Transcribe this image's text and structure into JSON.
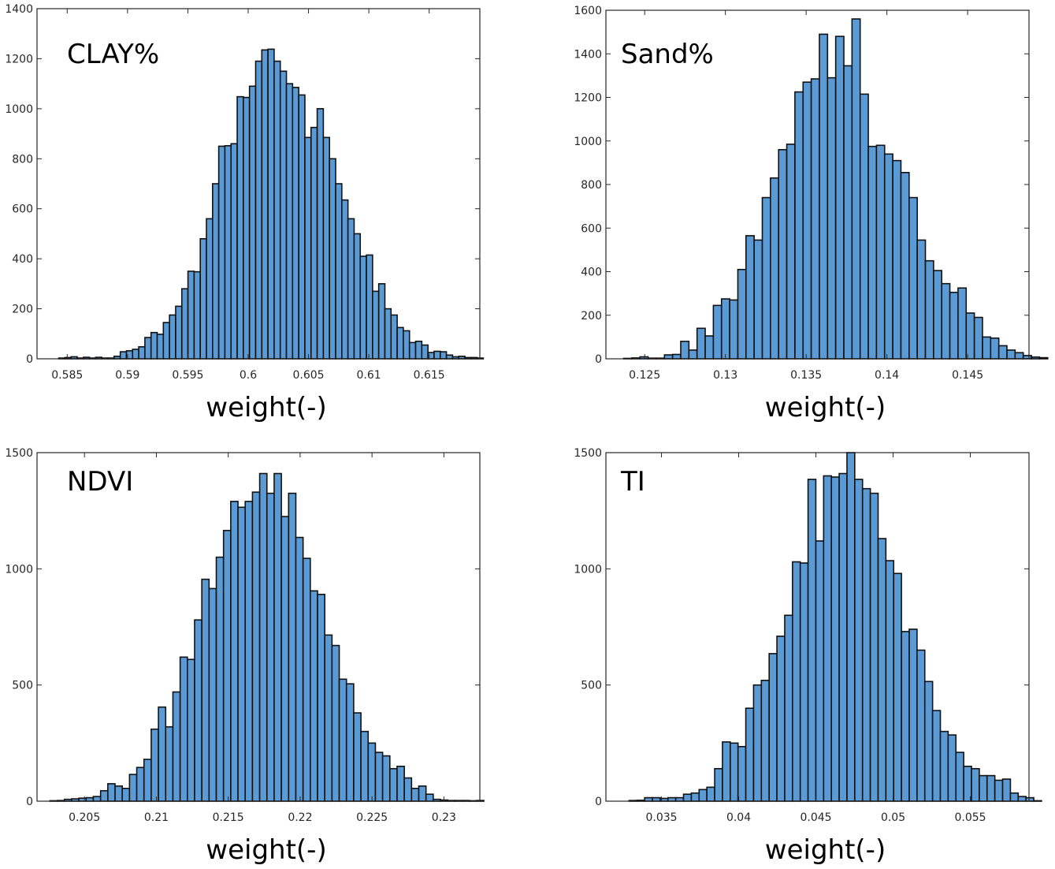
{
  "chart_data": [
    {
      "type": "bar",
      "title": "CLAY%",
      "xlabel": "weight(-)",
      "ylabel": "",
      "xlim": [
        0.5825,
        0.6192
      ],
      "ylim": [
        0,
        1400
      ],
      "xticks": [
        0.585,
        0.59,
        0.595,
        0.6,
        0.605,
        0.61,
        0.615
      ],
      "xtick_labels": [
        "0.585",
        "0.59",
        "0.595",
        "0.6",
        "0.605",
        "0.61",
        "0.615"
      ],
      "yticks": [
        0,
        200,
        400,
        600,
        800,
        1000,
        1200,
        1400
      ],
      "ytick_labels": [
        "0",
        "200",
        "400",
        "600",
        "800",
        "1000",
        "1200",
        "1400"
      ],
      "bin_start": 0.5843,
      "bin_width": 0.00051,
      "values": [
        3,
        5,
        8,
        3,
        6,
        3,
        6,
        3,
        3,
        10,
        28,
        32,
        38,
        48,
        85,
        105,
        98,
        145,
        175,
        210,
        280,
        350,
        348,
        480,
        560,
        700,
        850,
        852,
        860,
        1048,
        1045,
        1090,
        1190,
        1235,
        1238,
        1190,
        1150,
        1100,
        1085,
        1055,
        885,
        925,
        1000,
        885,
        800,
        700,
        635,
        560,
        500,
        410,
        415,
        270,
        300,
        200,
        175,
        125,
        112,
        65,
        70,
        55,
        25,
        30,
        28,
        15,
        8,
        10,
        5,
        5,
        3
      ]
    },
    {
      "type": "bar",
      "title": "Sand%",
      "xlabel": "weight(-)",
      "ylabel": "",
      "xlim": [
        0.1226,
        0.1488
      ],
      "ylim": [
        0,
        1600
      ],
      "xticks": [
        0.125,
        0.13,
        0.135,
        0.14,
        0.145
      ],
      "xtick_labels": [
        "0.125",
        "0.13",
        "0.135",
        "0.14",
        "0.145"
      ],
      "yticks": [
        0,
        200,
        400,
        600,
        800,
        1000,
        1200,
        1400,
        1600
      ],
      "ytick_labels": [
        "0",
        "200",
        "400",
        "600",
        "800",
        "1000",
        "1200",
        "1400",
        "1600"
      ],
      "bin_start": 0.1237,
      "bin_width": 0.000505,
      "values": [
        2,
        4,
        9,
        3,
        3,
        18,
        20,
        80,
        40,
        140,
        105,
        245,
        275,
        270,
        410,
        565,
        545,
        740,
        830,
        960,
        985,
        1225,
        1270,
        1285,
        1490,
        1290,
        1480,
        1345,
        1560,
        1215,
        975,
        980,
        940,
        910,
        855,
        740,
        545,
        450,
        405,
        345,
        305,
        325,
        210,
        190,
        100,
        95,
        60,
        40,
        28,
        15,
        8,
        5
      ]
    },
    {
      "type": "bar",
      "title": "NDVI",
      "xlabel": "weight(-)",
      "ylabel": "",
      "xlim": [
        0.2017,
        0.2325
      ],
      "ylim": [
        0,
        1500
      ],
      "xticks": [
        0.205,
        0.21,
        0.215,
        0.22,
        0.225,
        0.23
      ],
      "xtick_labels": [
        "0.205",
        "0.21",
        "0.215",
        "0.22",
        "0.225",
        "0.23"
      ],
      "yticks": [
        0,
        500,
        1000,
        1500
      ],
      "ytick_labels": [
        "0",
        "500",
        "1000",
        "1500"
      ],
      "bin_start": 0.2026,
      "bin_width": 0.000503,
      "values": [
        2,
        3,
        8,
        10,
        13,
        15,
        20,
        45,
        75,
        65,
        55,
        115,
        145,
        180,
        310,
        405,
        320,
        470,
        620,
        610,
        780,
        955,
        915,
        1050,
        1165,
        1290,
        1265,
        1290,
        1330,
        1410,
        1325,
        1410,
        1225,
        1325,
        1135,
        1045,
        905,
        890,
        715,
        670,
        525,
        505,
        380,
        300,
        250,
        210,
        195,
        140,
        150,
        100,
        55,
        65,
        30,
        8,
        5,
        3,
        3,
        3,
        2,
        3
      ]
    },
    {
      "type": "bar",
      "title": "TI",
      "xlabel": "weight(-)",
      "ylabel": "",
      "xlim": [
        0.0314,
        0.0588
      ],
      "ylim": [
        0,
        1500
      ],
      "xticks": [
        0.035,
        0.04,
        0.045,
        0.05,
        0.055
      ],
      "xtick_labels": [
        "0.035",
        "0.04",
        "0.045",
        "0.05",
        "0.055"
      ],
      "yticks": [
        0,
        500,
        1000,
        1500
      ],
      "ytick_labels": [
        "0",
        "500",
        "1000",
        "1500"
      ],
      "bin_start": 0.0329,
      "bin_width": 0.000504,
      "values": [
        3,
        4,
        15,
        15,
        12,
        15,
        15,
        30,
        35,
        50,
        60,
        140,
        255,
        250,
        235,
        400,
        500,
        520,
        635,
        710,
        800,
        1030,
        1025,
        1385,
        1120,
        1400,
        1395,
        1410,
        1500,
        1385,
        1345,
        1325,
        1130,
        1035,
        980,
        730,
        740,
        650,
        515,
        390,
        300,
        285,
        210,
        150,
        140,
        110,
        110,
        90,
        95,
        35,
        20,
        15,
        2
      ]
    }
  ]
}
